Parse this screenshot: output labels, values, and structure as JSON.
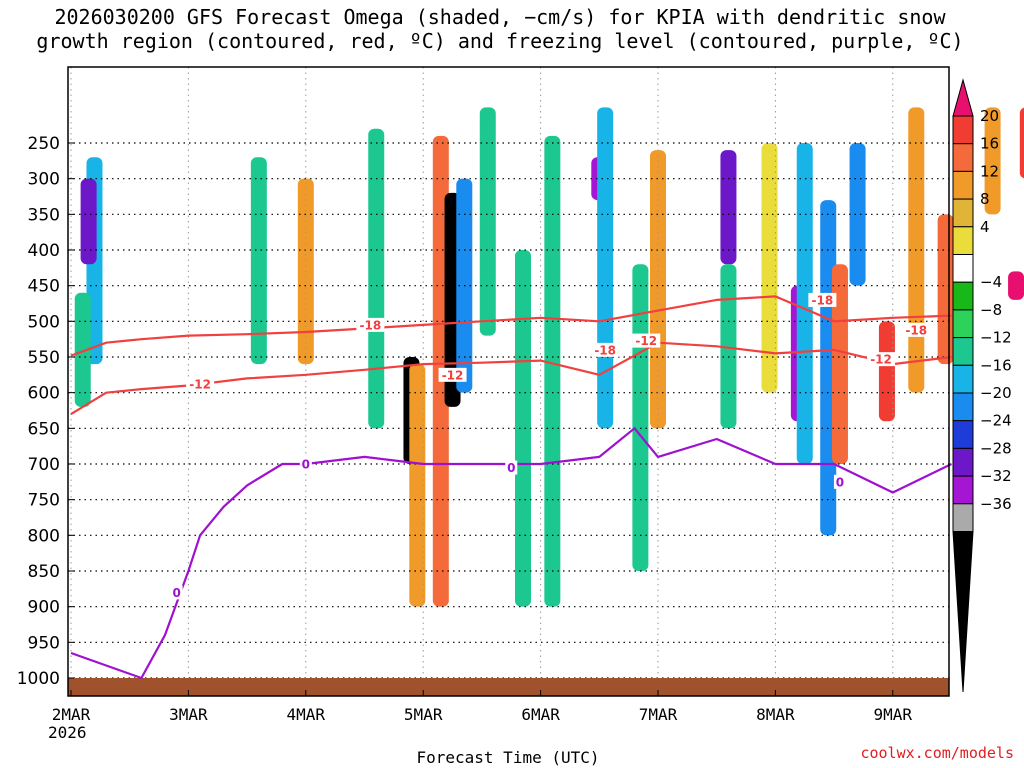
{
  "chart_data": {
    "type": "heatmap",
    "title_lines": [
      "2026030200 GFS Forecast Omega (shaded, −cm/s) for KPIA with dendritic snow",
      "growth region (contoured, red, ºC) and freezing level (contoured, purple, ºC)"
    ],
    "xlabel": "Forecast Time (UTC)",
    "x_ticks": [
      "2MAR",
      "3MAR",
      "4MAR",
      "5MAR",
      "6MAR",
      "7MAR",
      "8MAR",
      "9MAR"
    ],
    "x_year": "2026",
    "xlim_days": [
      0,
      7.5
    ],
    "ylabel": "Pressure (hPa)",
    "y_ticks": [
      250,
      300,
      350,
      400,
      450,
      500,
      550,
      600,
      650,
      700,
      750,
      800,
      850,
      900,
      950,
      1000
    ],
    "ylim": [
      200,
      1020
    ],
    "colorbar": {
      "labels": [
        "20",
        "16",
        "12",
        "8",
        "4",
        "−4",
        "−8",
        "−12",
        "−16",
        "−20",
        "−24",
        "−28",
        "−32",
        "−36"
      ],
      "colors": [
        "#e8106e",
        "#f03c32",
        "#f46a3a",
        "#f09a2a",
        "#e0b436",
        "#eadc3a",
        "#ffffff",
        "#18b818",
        "#2cd25a",
        "#1cc890",
        "#18b4e8",
        "#1a8cf0",
        "#1e3cd8",
        "#6c18c8",
        "#a416d4",
        "#aaaaaa",
        "#000000"
      ]
    },
    "omega_cells": [
      {
        "t": 0.2,
        "p0": 270,
        "p1": 560,
        "v": -14
      },
      {
        "t": 0.15,
        "p0": 300,
        "p1": 420,
        "v": -26
      },
      {
        "t": 0.1,
        "p0": 460,
        "p1": 620,
        "v": -8
      },
      {
        "t": 1.6,
        "p0": 270,
        "p1": 560,
        "v": -8
      },
      {
        "t": 2.0,
        "p0": 300,
        "p1": 560,
        "v": 8
      },
      {
        "t": 2.6,
        "p0": 230,
        "p1": 650,
        "v": -10
      },
      {
        "t": 2.9,
        "p0": 550,
        "p1": 700,
        "v": -36
      },
      {
        "t": 2.95,
        "p0": 560,
        "p1": 900,
        "v": 10
      },
      {
        "t": 3.15,
        "p0": 240,
        "p1": 900,
        "v": 14
      },
      {
        "t": 3.25,
        "p0": 320,
        "p1": 620,
        "v": -36
      },
      {
        "t": 3.35,
        "p0": 300,
        "p1": 600,
        "v": -16
      },
      {
        "t": 3.55,
        "p0": 200,
        "p1": 520,
        "v": -10
      },
      {
        "t": 3.85,
        "p0": 400,
        "p1": 900,
        "v": -8
      },
      {
        "t": 4.1,
        "p0": 240,
        "p1": 900,
        "v": -10
      },
      {
        "t": 4.5,
        "p0": 270,
        "p1": 330,
        "v": -28
      },
      {
        "t": 4.55,
        "p0": 200,
        "p1": 650,
        "v": -12
      },
      {
        "t": 4.85,
        "p0": 420,
        "p1": 850,
        "v": -10
      },
      {
        "t": 5.0,
        "p0": 260,
        "p1": 650,
        "v": 10
      },
      {
        "t": 5.6,
        "p0": 260,
        "p1": 420,
        "v": -24
      },
      {
        "t": 5.6,
        "p0": 420,
        "p1": 650,
        "v": -8
      },
      {
        "t": 5.95,
        "p0": 250,
        "p1": 600,
        "v": 6
      },
      {
        "t": 6.2,
        "p0": 450,
        "p1": 640,
        "v": -28
      },
      {
        "t": 6.25,
        "p0": 250,
        "p1": 700,
        "v": -12
      },
      {
        "t": 6.45,
        "p0": 330,
        "p1": 800,
        "v": -16
      },
      {
        "t": 6.55,
        "p0": 420,
        "p1": 700,
        "v": 12
      },
      {
        "t": 6.7,
        "p0": 250,
        "p1": 450,
        "v": -18
      },
      {
        "t": 6.95,
        "p0": 500,
        "p1": 640,
        "v": 18
      },
      {
        "t": 7.2,
        "p0": 200,
        "p1": 600,
        "v": 8
      },
      {
        "t": 7.45,
        "p0": 350,
        "p1": 560,
        "v": 14
      },
      {
        "t": 7.6,
        "p0": 200,
        "p1": 450,
        "v": -12
      },
      {
        "t": 7.85,
        "p0": 200,
        "p1": 350,
        "v": 10
      },
      {
        "t": 8.05,
        "p0": 430,
        "p1": 470,
        "v": 20
      },
      {
        "t": 8.15,
        "p0": 200,
        "p1": 300,
        "v": 16
      },
      {
        "t": 8.35,
        "p0": 450,
        "p1": 800,
        "v": 5
      }
    ],
    "contours": [
      {
        "name": "-18",
        "color": "#f04040",
        "t": [
          0,
          0.3,
          0.6,
          1.0,
          1.5,
          2.0,
          2.5,
          3.0,
          3.5,
          4.0,
          4.5,
          5.0,
          5.5,
          6.0,
          6.5,
          7.0,
          7.5
        ],
        "p": [
          548,
          530,
          525,
          520,
          518,
          515,
          510,
          505,
          500,
          495,
          500,
          485,
          470,
          465,
          500,
          495,
          492
        ]
      },
      {
        "name": "-12",
        "color": "#f04040",
        "t": [
          0,
          0.3,
          0.6,
          1.0,
          1.5,
          2.0,
          2.5,
          3.0,
          3.5,
          4.0,
          4.5,
          5.0,
          5.5,
          6.0,
          6.5,
          7.0,
          7.5
        ],
        "p": [
          630,
          600,
          595,
          590,
          580,
          575,
          568,
          560,
          558,
          555,
          575,
          530,
          535,
          545,
          540,
          560,
          550
        ]
      },
      {
        "name": "0",
        "color": "#a010d0",
        "t": [
          0,
          0.6,
          0.8,
          1.0,
          1.1,
          1.3,
          1.5,
          1.8,
          2.0,
          2.5,
          3.0,
          3.5,
          4.0,
          4.5,
          4.8,
          5.0,
          5.5,
          6.0,
          6.5,
          7.0,
          7.5
        ],
        "p": [
          965,
          1000,
          940,
          850,
          800,
          760,
          730,
          700,
          700,
          690,
          700,
          700,
          700,
          690,
          650,
          690,
          665,
          700,
          700,
          740,
          700
        ]
      }
    ],
    "contour_labels": [
      {
        "text": "-18",
        "t": 2.55,
        "p": 505,
        "color": "#f04040"
      },
      {
        "text": "-18",
        "t": 4.55,
        "p": 540,
        "color": "#f04040"
      },
      {
        "text": "-18",
        "t": 6.4,
        "p": 470,
        "color": "#f04040"
      },
      {
        "text": "-18",
        "t": 7.2,
        "p": 512,
        "color": "#f04040"
      },
      {
        "text": "-12",
        "t": 1.1,
        "p": 588,
        "color": "#f04040"
      },
      {
        "text": "-12",
        "t": 3.25,
        "p": 575,
        "color": "#f04040"
      },
      {
        "text": "-12",
        "t": 4.9,
        "p": 527,
        "color": "#f04040"
      },
      {
        "text": "-12",
        "t": 6.9,
        "p": 553,
        "color": "#f04040"
      },
      {
        "text": "0",
        "t": 2.0,
        "p": 700,
        "color": "#a010d0"
      },
      {
        "text": "0",
        "t": 3.75,
        "p": 705,
        "color": "#a010d0"
      },
      {
        "text": "0",
        "t": 6.55,
        "p": 725,
        "color": "#a010d0"
      },
      {
        "text": "0",
        "t": 0.9,
        "p": 880,
        "color": "#a010d0"
      }
    ],
    "terrain": {
      "color": "#a0522d",
      "p_top": 1000
    }
  },
  "watermark": "coolwx.com/models",
  "watermark_color": "#e02020"
}
